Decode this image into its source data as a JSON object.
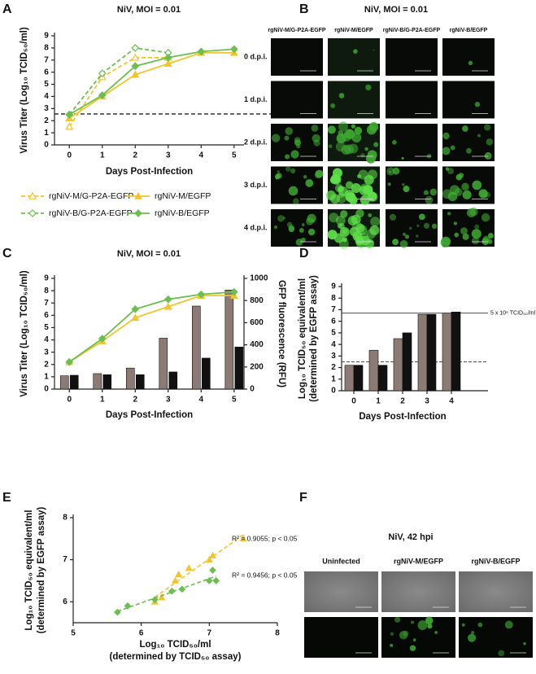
{
  "chart_data": [
    {
      "panel": "A",
      "type": "line",
      "title": "NiV, MOI = 0.01",
      "x_label": "Days Post-Infection",
      "y_label": "Virus Titer (Log₁₀ TCID₅₀/ml)",
      "x": [
        0,
        1,
        2,
        3,
        4,
        5
      ],
      "xlim": [
        -0.45,
        5.3
      ],
      "xticks": [
        0,
        1,
        2,
        3,
        4,
        5
      ],
      "ylim": [
        0,
        9
      ],
      "yticks": [
        0,
        1,
        2,
        3,
        4,
        5,
        6,
        7,
        8,
        9
      ],
      "hline": 2.55,
      "series": [
        {
          "name": "rgNiV-M/G-P2A-EGFP",
          "color": "#f2c42e",
          "dashed": true,
          "marker": "open-triangle",
          "values": [
            1.5,
            5.6,
            7.2,
            7.2,
            null,
            null
          ]
        },
        {
          "name": "rgNiV-M/EGFP",
          "color": "#f2c42e",
          "dashed": false,
          "marker": "triangle",
          "values": [
            2.2,
            4.0,
            5.8,
            6.7,
            7.6,
            7.6
          ]
        },
        {
          "name": "rgNiV-B/G-P2A-EGFP",
          "color": "#6cbf4e",
          "dashed": true,
          "marker": "open-diamond",
          "values": [
            2.5,
            5.9,
            8.0,
            7.6,
            null,
            null
          ]
        },
        {
          "name": "rgNiV-B/EGFP",
          "color": "#6cbf4e",
          "dashed": false,
          "marker": "diamond",
          "values": [
            2.5,
            4.1,
            6.5,
            7.2,
            7.7,
            7.9
          ]
        }
      ]
    },
    {
      "panel": "C",
      "type": "combo",
      "title": "NiV, MOI = 0.01",
      "x_label": "Days Post-Infection",
      "y_label": "Virus Titer (Log₁₀ TCID₅₀/ml)",
      "y2_label": "GFP fluorescence (RFU)",
      "x": [
        0,
        1,
        2,
        3,
        4,
        5
      ],
      "xlim": [
        -0.45,
        5.3
      ],
      "xticks": [
        0,
        1,
        2,
        3,
        4,
        5
      ],
      "ylim": [
        0,
        9
      ],
      "yticks": [
        0,
        1,
        2,
        3,
        4,
        5,
        6,
        7,
        8,
        9
      ],
      "y2lim": [
        0,
        1000
      ],
      "y2ticks": [
        0,
        200,
        400,
        600,
        800,
        1000
      ],
      "series": [
        {
          "kind": "bar",
          "axis": "y2",
          "color": "#8c7b74",
          "values": [
            120,
            140,
            190,
            460,
            750,
            895
          ]
        },
        {
          "kind": "bar",
          "axis": "y2",
          "color": "#111111",
          "values": [
            125,
            130,
            130,
            155,
            280,
            380
          ]
        },
        {
          "kind": "line",
          "color": "#f2c42e",
          "marker": "triangle",
          "values": [
            2.2,
            3.9,
            5.8,
            6.7,
            7.6,
            7.6
          ]
        },
        {
          "kind": "line",
          "color": "#6cbf4e",
          "marker": "diamond",
          "values": [
            2.2,
            4.1,
            6.5,
            7.3,
            7.7,
            7.9
          ]
        }
      ]
    },
    {
      "panel": "D",
      "type": "bar",
      "x_label": "Days Post-Infection",
      "y_label": [
        "Log₁₀ TCID₅₀ equivalent/ml",
        "(determined by EGFP assay)"
      ],
      "categories": [
        "0",
        "1",
        "2",
        "3",
        "4"
      ],
      "ylim": [
        0,
        9
      ],
      "yticks": [
        0,
        1,
        2,
        3,
        4,
        5,
        6,
        7,
        8,
        9
      ],
      "hlines": [
        {
          "value": 6.7,
          "label": "5 x 10⁶ TCID₅₀/ml",
          "style": "solid"
        },
        {
          "value": 2.5,
          "style": "dashed"
        }
      ],
      "series": [
        {
          "color": "#8c7b74",
          "values": [
            2.2,
            3.5,
            4.5,
            6.6,
            6.7
          ]
        },
        {
          "color": "#111111",
          "values": [
            2.2,
            2.2,
            5.0,
            6.6,
            6.8
          ]
        }
      ]
    },
    {
      "panel": "E",
      "type": "scatter",
      "x_label": [
        "Log₁₀ TCID₅₀/ml",
        "(determined by TCID₅₀ assay)"
      ],
      "y_label": [
        "Log₁₀ TCID₅₀ equivalent/ml",
        "(determined by EGFP assay)"
      ],
      "xlim": [
        5,
        8
      ],
      "xticks": [
        5,
        6,
        7,
        8
      ],
      "ylim": [
        5.5,
        8
      ],
      "yticks": [
        6,
        7,
        8
      ],
      "series": [
        {
          "color": "#f2c42e",
          "marker": "triangle",
          "annotation": "R² = 0.9055; p < 0.05",
          "x": [
            6.2,
            6.3,
            6.5,
            6.55,
            6.7,
            7.0,
            7.05,
            7.5
          ],
          "values": [
            6.0,
            6.1,
            6.5,
            6.65,
            6.8,
            7.0,
            7.1,
            7.5
          ]
        },
        {
          "color": "#6cbf4e",
          "marker": "diamond",
          "annotation": "R² = 0.9456; p < 0.05",
          "x": [
            5.65,
            5.8,
            6.2,
            6.45,
            6.6,
            7.0,
            7.05,
            7.1
          ],
          "values": [
            5.75,
            5.9,
            6.05,
            6.25,
            6.3,
            6.5,
            6.75,
            6.5
          ]
        }
      ]
    }
  ],
  "image_panels": [
    {
      "panel": "B",
      "title": "NiV, MOI = 0.01",
      "columns": [
        "rgNiV-M/G-P2A-EGFP",
        "rgNiV-M/EGFP",
        "rgNiV-B/G-P2A-EGFP",
        "rgNiV-B/EGFP"
      ],
      "rows": [
        "0 d.p.i.",
        "1 d.p.i.",
        "2 d.p.i.",
        "3 d.p.i.",
        "4 d.p.i."
      ]
    },
    {
      "panel": "F",
      "title": "NiV, 42 hpi",
      "columns": [
        "Uninfected",
        "rgNiV-M/EGFP",
        "rgNiV-B/EGFP"
      ]
    }
  ]
}
